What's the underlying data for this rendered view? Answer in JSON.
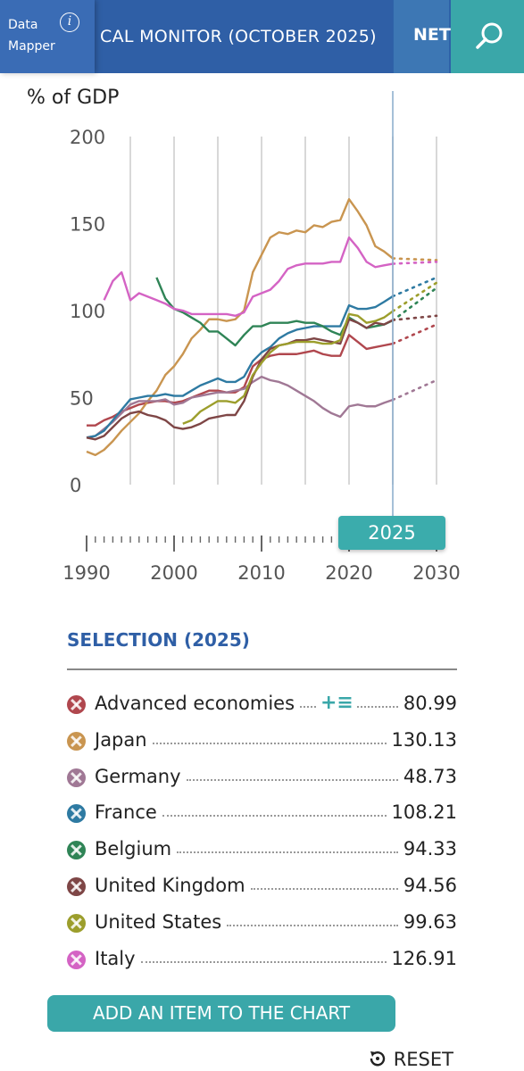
{
  "header": {
    "data_mapper_line1": "Data",
    "data_mapper_line2": "Mapper",
    "info_symbol": "i",
    "title": "CAL MONITOR (OCTOBER 2025)",
    "net_tab": "NET",
    "search_icon": "search-icon"
  },
  "year_selector": "2025",
  "selection": {
    "title": "SELECTION (2025)",
    "add_button": "ADD AN ITEM TO THE CHART",
    "reset_label": "RESET",
    "tools_symbol": "+≡",
    "items": [
      {
        "name": "Advanced economies",
        "value": "80.99",
        "color": "#b0474e"
      },
      {
        "name": "Japan",
        "value": "130.13",
        "color": "#c99550"
      },
      {
        "name": "Germany",
        "value": "48.73",
        "color": "#a07895"
      },
      {
        "name": "France",
        "value": "108.21",
        "color": "#2e7aa2"
      },
      {
        "name": "Belgium",
        "value": "94.33",
        "color": "#2f8456"
      },
      {
        "name": "United Kingdom",
        "value": "94.56",
        "color": "#7e4646"
      },
      {
        "name": "United States",
        "value": "99.63",
        "color": "#9c9e2c"
      },
      {
        "name": "Italy",
        "value": "126.91",
        "color": "#d463c4"
      }
    ]
  },
  "chart_data": {
    "type": "line",
    "ylabel": "% of GDP",
    "ylim": [
      0,
      200
    ],
    "xlim": [
      1990,
      2030
    ],
    "y_ticks": [
      "0",
      "50",
      "100",
      "150",
      "200"
    ],
    "x_ticks": [
      "1990",
      "2000",
      "2010",
      "2020",
      "2030"
    ],
    "selected_year": 2025,
    "grid": true,
    "series": [
      {
        "name": "Advanced economies",
        "color": "#b0474e",
        "x": [
          1990,
          1991,
          1992,
          1993,
          1994,
          1995,
          1996,
          1997,
          1998,
          1999,
          2000,
          2001,
          2002,
          2003,
          2004,
          2005,
          2006,
          2007,
          2008,
          2009,
          2010,
          2011,
          2012,
          2013,
          2014,
          2015,
          2016,
          2017,
          2018,
          2019,
          2020,
          2021,
          2022,
          2023,
          2024,
          2025
        ],
        "y": [
          34,
          34,
          37,
          39,
          42,
          44,
          46,
          47,
          48,
          48,
          47,
          48,
          50,
          52,
          54,
          54,
          53,
          53,
          56,
          68,
          72,
          74,
          75,
          75,
          75,
          76,
          77,
          75,
          74,
          74,
          86,
          82,
          78,
          79,
          80,
          81
        ],
        "proj_x": [
          2025,
          2030
        ],
        "proj_y": [
          81,
          92
        ]
      },
      {
        "name": "Japan",
        "color": "#c99550",
        "x": [
          1990,
          1991,
          1992,
          1993,
          1994,
          1995,
          1996,
          1997,
          1998,
          1999,
          2000,
          2001,
          2002,
          2003,
          2004,
          2005,
          2006,
          2007,
          2008,
          2009,
          2010,
          2011,
          2012,
          2013,
          2014,
          2015,
          2016,
          2017,
          2018,
          2019,
          2020,
          2021,
          2022,
          2023,
          2024,
          2025
        ],
        "y": [
          19,
          17,
          20,
          25,
          31,
          36,
          41,
          48,
          54,
          63,
          68,
          75,
          84,
          89,
          95,
          95,
          94,
          95,
          100,
          122,
          132,
          142,
          145,
          144,
          146,
          145,
          149,
          148,
          151,
          152,
          164,
          157,
          149,
          137,
          134,
          130
        ],
        "proj_x": [
          2025,
          2030
        ],
        "proj_y": [
          130,
          129
        ]
      },
      {
        "name": "Germany",
        "color": "#a07895",
        "x": [
          1990,
          1991,
          1992,
          1993,
          1994,
          1995,
          1996,
          1997,
          1998,
          1999,
          2000,
          2001,
          2002,
          2003,
          2004,
          2005,
          2006,
          2007,
          2008,
          2009,
          2010,
          2011,
          2012,
          2013,
          2014,
          2015,
          2016,
          2017,
          2018,
          2019,
          2020,
          2021,
          2022,
          2023,
          2024,
          2025
        ],
        "y": [
          27,
          28,
          32,
          36,
          41,
          46,
          48,
          48,
          48,
          49,
          46,
          47,
          50,
          51,
          52,
          53,
          53,
          54,
          55,
          59,
          62,
          60,
          59,
          57,
          54,
          51,
          48,
          44,
          41,
          39,
          45,
          46,
          45,
          45,
          47,
          48.73
        ],
        "proj_x": [
          2025,
          2030
        ],
        "proj_y": [
          48.73,
          60
        ]
      },
      {
        "name": "France",
        "color": "#2e7aa2",
        "x": [
          1990,
          1991,
          1992,
          1993,
          1994,
          1995,
          1996,
          1997,
          1998,
          1999,
          2000,
          2001,
          2002,
          2003,
          2004,
          2005,
          2006,
          2007,
          2008,
          2009,
          2010,
          2011,
          2012,
          2013,
          2014,
          2015,
          2016,
          2017,
          2018,
          2019,
          2020,
          2021,
          2022,
          2023,
          2024,
          2025
        ],
        "y": [
          27,
          28,
          31,
          37,
          43,
          49,
          50,
          51,
          51,
          52,
          51,
          51,
          54,
          57,
          59,
          61,
          59,
          59,
          62,
          71,
          76,
          79,
          84,
          87,
          89,
          90,
          91,
          91,
          91,
          91,
          103,
          101,
          101,
          102,
          105,
          108.21
        ],
        "proj_x": [
          2025,
          2030
        ],
        "proj_y": [
          108.21,
          119
        ]
      },
      {
        "name": "Belgium",
        "color": "#2f8456",
        "x": [
          1998,
          1999,
          2000,
          2001,
          2002,
          2003,
          2004,
          2005,
          2006,
          2007,
          2008,
          2009,
          2010,
          2011,
          2012,
          2013,
          2014,
          2015,
          2016,
          2017,
          2018,
          2019,
          2020,
          2021,
          2022,
          2023,
          2024,
          2025
        ],
        "y": [
          119,
          107,
          101,
          99,
          96,
          93,
          88,
          88,
          84,
          80,
          86,
          91,
          91,
          93,
          93,
          93,
          94,
          93,
          93,
          91,
          88,
          86,
          96,
          93,
          90,
          91,
          92,
          94.33
        ],
        "proj_x": [
          2025,
          2030
        ],
        "proj_y": [
          94.33,
          113
        ]
      },
      {
        "name": "United Kingdom",
        "color": "#7e4646",
        "x": [
          1990,
          1991,
          1992,
          1993,
          1994,
          1995,
          1996,
          1997,
          1998,
          1999,
          2000,
          2001,
          2002,
          2003,
          2004,
          2005,
          2006,
          2007,
          2008,
          2009,
          2010,
          2011,
          2012,
          2013,
          2014,
          2015,
          2016,
          2017,
          2018,
          2019,
          2020,
          2021,
          2022,
          2023,
          2024,
          2025
        ],
        "y": [
          27,
          26,
          28,
          33,
          38,
          41,
          42,
          40,
          39,
          37,
          33,
          32,
          33,
          35,
          38,
          39,
          40,
          40,
          48,
          62,
          72,
          78,
          80,
          81,
          83,
          83,
          84,
          83,
          82,
          81,
          95,
          93,
          90,
          93,
          92,
          94.56
        ],
        "proj_x": [
          2025,
          2030
        ],
        "proj_y": [
          94.56,
          97
        ]
      },
      {
        "name": "United States",
        "color": "#9c9e2c",
        "x": [
          2001,
          2002,
          2003,
          2004,
          2005,
          2006,
          2007,
          2008,
          2009,
          2010,
          2011,
          2012,
          2013,
          2014,
          2015,
          2016,
          2017,
          2018,
          2019,
          2020,
          2021,
          2022,
          2023,
          2024,
          2025
        ],
        "y": [
          35,
          37,
          42,
          45,
          48,
          48,
          47,
          51,
          63,
          70,
          76,
          80,
          81,
          82,
          82,
          82,
          81,
          81,
          83,
          98,
          97,
          93,
          94,
          96,
          99.63
        ],
        "proj_x": [
          2025,
          2030
        ],
        "proj_y": [
          99.63,
          116
        ]
      },
      {
        "name": "Italy",
        "color": "#d463c4",
        "x": [
          1992,
          1993,
          1994,
          1995,
          1996,
          1997,
          1998,
          1999,
          2000,
          2001,
          2002,
          2003,
          2004,
          2005,
          2006,
          2007,
          2008,
          2009,
          2010,
          2011,
          2012,
          2013,
          2014,
          2015,
          2016,
          2017,
          2018,
          2019,
          2020,
          2021,
          2022,
          2023,
          2024,
          2025
        ],
        "y": [
          106,
          117,
          122,
          106,
          110,
          108,
          106,
          104,
          101,
          100,
          98,
          98,
          98,
          98,
          98,
          97,
          99,
          108,
          110,
          112,
          117,
          124,
          126,
          127,
          127,
          127,
          128,
          128,
          142,
          136,
          128,
          125,
          126,
          126.91
        ],
        "proj_x": [
          2025,
          2030
        ],
        "proj_y": [
          126.91,
          128
        ]
      }
    ]
  }
}
